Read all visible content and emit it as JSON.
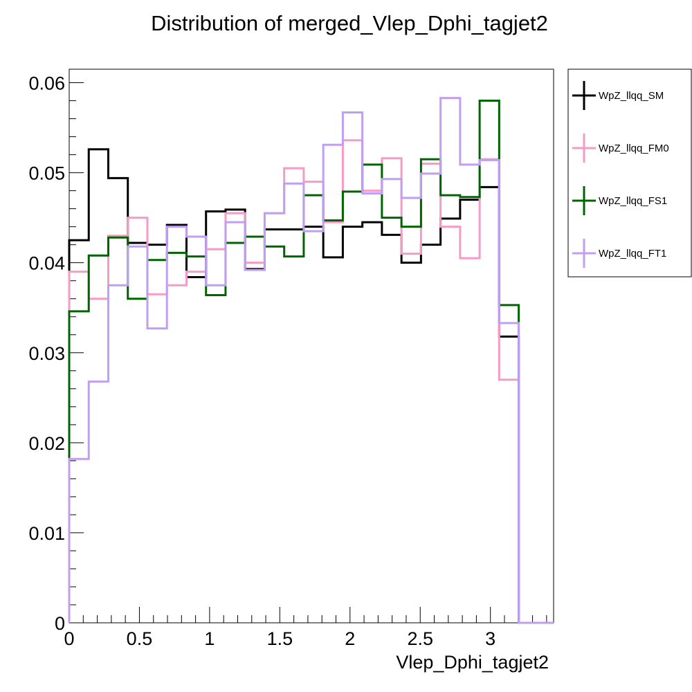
{
  "chart_data": {
    "type": "histogram",
    "title": "Distribution of merged_Vlep_Dphi_tagjet2",
    "xlabel": "Vlep_Dphi_tagjet2",
    "ylabel": "",
    "xlim": [
      0,
      3.45
    ],
    "ylim": [
      0,
      0.0615
    ],
    "x_ticks": [
      0,
      0.5,
      1,
      1.5,
      2,
      2.5,
      3
    ],
    "x_tick_labels": [
      "0",
      "0.5",
      "1",
      "1.5",
      "2",
      "2.5",
      "3"
    ],
    "y_ticks": [
      0,
      0.01,
      0.02,
      0.03,
      0.04,
      0.05,
      0.06
    ],
    "y_tick_labels": [
      "0",
      "0.01",
      "0.02",
      "0.03",
      "0.04",
      "0.05",
      "0.06"
    ],
    "grid": false,
    "legend_position": "right",
    "bin_edges": [
      0,
      0.1392,
      0.2784,
      0.4176,
      0.5568,
      0.696,
      0.8352,
      0.9744,
      1.1136,
      1.2528,
      1.392,
      1.5312,
      1.6704,
      1.8096,
      1.9488,
      2.088,
      2.2272,
      2.3664,
      2.5056,
      2.6448,
      2.784,
      2.9232,
      3.0624,
      3.2016,
      3.45
    ],
    "series": [
      {
        "name": "WpZ_llqq_SM",
        "color": "#000000",
        "values": [
          0.0425,
          0.0526,
          0.0494,
          0.0422,
          0.042,
          0.0442,
          0.0384,
          0.0457,
          0.0459,
          0.0393,
          0.0437,
          0.0437,
          0.044,
          0.0406,
          0.044,
          0.0445,
          0.0431,
          0.04,
          0.042,
          0.0449,
          0.047,
          0.0484,
          0.0318,
          0.0
        ]
      },
      {
        "name": "WpZ_llqq_FM0",
        "color": "#f79bc6",
        "values": [
          0.039,
          0.036,
          0.043,
          0.045,
          0.0365,
          0.0375,
          0.039,
          0.0415,
          0.0455,
          0.04,
          0.0455,
          0.0505,
          0.049,
          0.0445,
          0.0536,
          0.048,
          0.0516,
          0.041,
          0.051,
          0.044,
          0.0405,
          0.0515,
          0.027,
          0.0
        ]
      },
      {
        "name": "WpZ_llqq_FS1",
        "color": "#006400",
        "values": [
          0.0346,
          0.0408,
          0.0428,
          0.036,
          0.0403,
          0.0411,
          0.0407,
          0.0364,
          0.0422,
          0.0429,
          0.0418,
          0.0407,
          0.0475,
          0.0447,
          0.0479,
          0.0509,
          0.045,
          0.044,
          0.0515,
          0.0475,
          0.0473,
          0.058,
          0.0353,
          0.0
        ]
      },
      {
        "name": "WpZ_llqq_FT1",
        "color": "#c09ef2",
        "values": [
          0.0182,
          0.0268,
          0.0375,
          0.0418,
          0.0327,
          0.044,
          0.0429,
          0.0375,
          0.0445,
          0.0392,
          0.0455,
          0.0488,
          0.0435,
          0.0531,
          0.0567,
          0.0477,
          0.0493,
          0.0472,
          0.0499,
          0.0583,
          0.0509,
          0.0514,
          0.0333,
          0.0
        ]
      }
    ]
  }
}
